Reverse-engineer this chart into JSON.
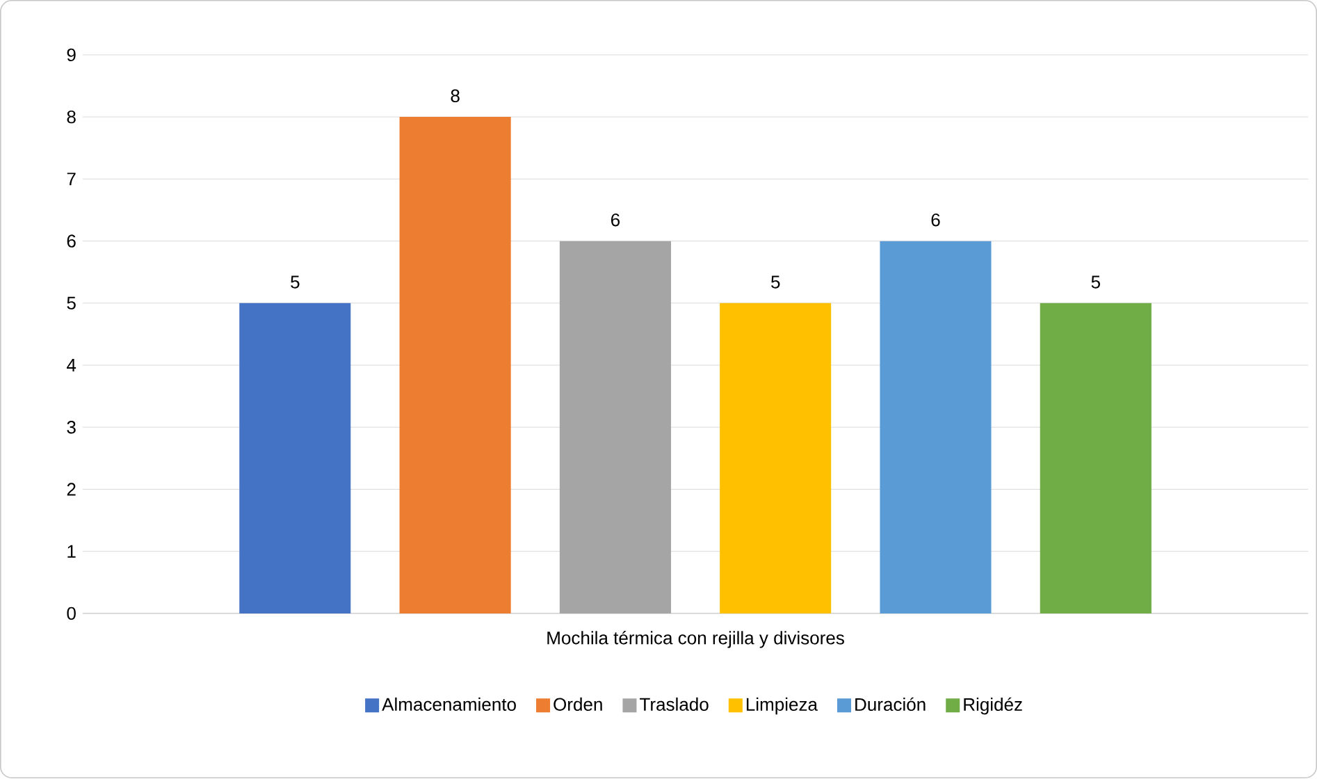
{
  "chart_data": {
    "type": "bar",
    "categories": [
      "Mochila térmica con rejilla y divisores"
    ],
    "series": [
      {
        "name": "Almacenamiento",
        "color": "#4472c4",
        "values": [
          5
        ]
      },
      {
        "name": "Orden",
        "color": "#ed7d31",
        "values": [
          8
        ]
      },
      {
        "name": "Traslado",
        "color": "#a5a5a5",
        "values": [
          6
        ]
      },
      {
        "name": "Limpieza",
        "color": "#ffc000",
        "values": [
          5
        ]
      },
      {
        "name": "Duración",
        "color": "#5b9bd5",
        "values": [
          6
        ]
      },
      {
        "name": "Rigidéz",
        "color": "#70ad47",
        "values": [
          5
        ]
      }
    ],
    "ylim": [
      0,
      9
    ],
    "yticks": [
      0,
      1,
      2,
      3,
      4,
      5,
      6,
      7,
      8,
      9
    ],
    "grid": "y",
    "legend": "bottom",
    "data_labels": true
  }
}
